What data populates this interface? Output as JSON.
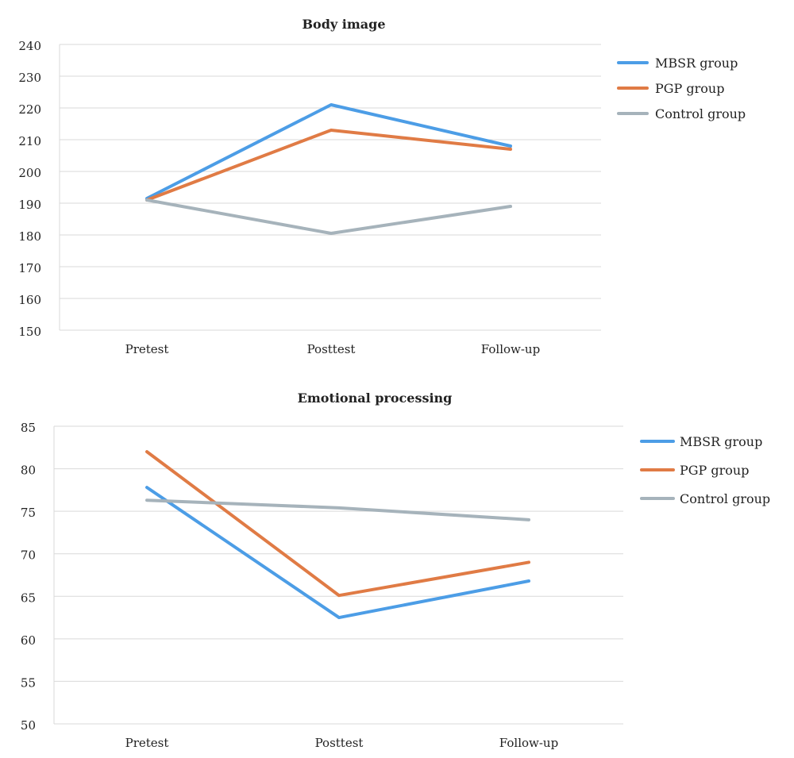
{
  "chart_data": [
    {
      "type": "line",
      "title": "Body image",
      "categories": [
        "Pretest",
        "Posttest",
        "Follow-up"
      ],
      "ylim": [
        150,
        240
      ],
      "yticks": [
        150,
        160,
        170,
        180,
        190,
        200,
        210,
        220,
        230,
        240
      ],
      "grid": true,
      "legend_position": "right",
      "series": [
        {
          "name": "MBSR group",
          "color": "#4c9de6",
          "values": [
            191.5,
            221,
            208
          ]
        },
        {
          "name": "PGP group",
          "color": "#e07b45",
          "values": [
            191,
            213,
            207
          ]
        },
        {
          "name": "Control group",
          "color": "#a6b3bb",
          "values": [
            191,
            180.5,
            189
          ]
        }
      ]
    },
    {
      "type": "line",
      "title": "Emotional processing",
      "categories": [
        "Pretest",
        "Posttest",
        "Follow-up"
      ],
      "ylim": [
        50,
        85
      ],
      "yticks": [
        50,
        55,
        60,
        65,
        70,
        75,
        80,
        85
      ],
      "grid": true,
      "legend_position": "right",
      "series": [
        {
          "name": "MBSR group",
          "color": "#4c9de6",
          "values": [
            77.8,
            62.5,
            66.8
          ]
        },
        {
          "name": "PGP group",
          "color": "#e07b45",
          "values": [
            82,
            65.1,
            69
          ]
        },
        {
          "name": "Control group",
          "color": "#a6b3bb",
          "values": [
            76.3,
            75.4,
            74
          ]
        }
      ]
    }
  ]
}
